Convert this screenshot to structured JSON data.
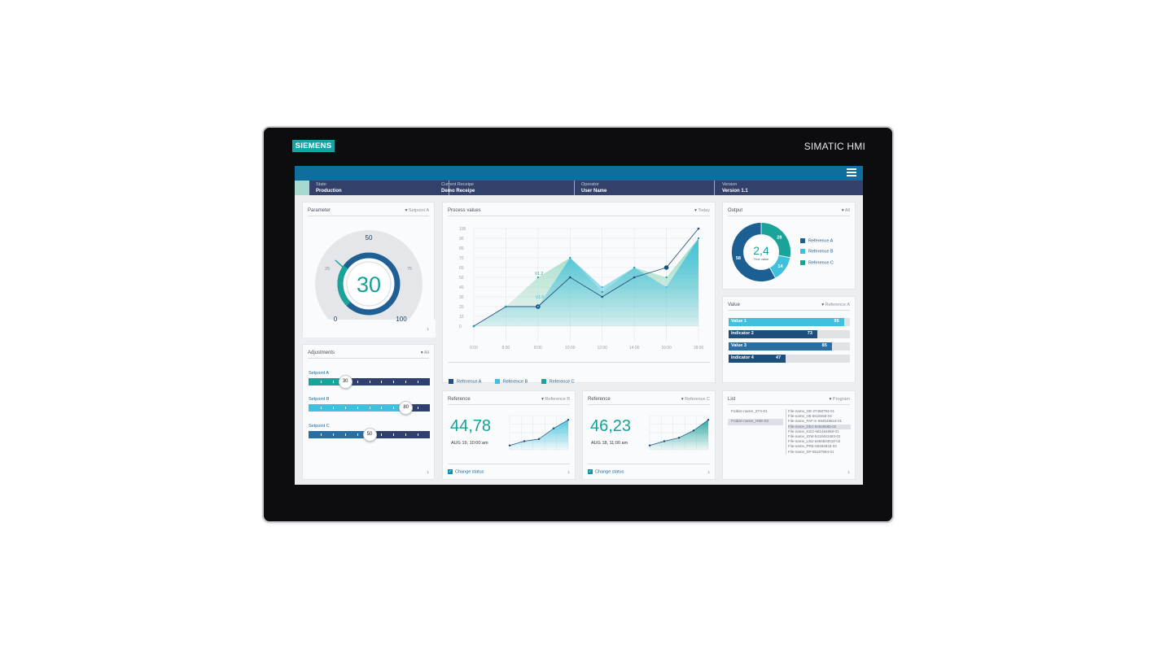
{
  "device": {
    "brand": "SIEMENS",
    "product": "SIMATIC HMI"
  },
  "status": [
    {
      "label": "State",
      "value": "Production"
    },
    {
      "label": "Current Receipe",
      "value": "Demo Receipe"
    },
    {
      "label": "Operator",
      "value": "User Name"
    },
    {
      "label": "Version",
      "value": "Version 1.1"
    }
  ],
  "parameter": {
    "title": "Parameter",
    "filter": "Setpoint A",
    "value": "30",
    "gauge_min": "0",
    "gauge_max": "100",
    "gauge_mid": "50",
    "gauge_q1": "25",
    "gauge_q3": "75",
    "fraction": 0.3
  },
  "adjustments": {
    "title": "Adjustments",
    "filter": "All",
    "sliders": [
      {
        "label": "Setpoint A",
        "value": "30",
        "level": 0.3,
        "color": "#1aa399"
      },
      {
        "label": "Setpoint B",
        "value": "80",
        "level": 0.8,
        "color": "#3fc0dc"
      },
      {
        "label": "Setpoint C",
        "value": "50",
        "level": 0.5,
        "color": "#2a6fa4"
      }
    ]
  },
  "process": {
    "title": "Process values",
    "filter": "Today",
    "legend": [
      {
        "name": "Reference A",
        "color": "#1c4f7c"
      },
      {
        "name": "Reference B",
        "color": "#3fc0dc"
      },
      {
        "name": "Reference C",
        "color": "#1aa399"
      }
    ]
  },
  "chart_data": {
    "type": "line",
    "x": [
      "6:00",
      "8:00",
      "8:00",
      "10:00",
      "12:00",
      "14:00",
      "16:00",
      "18:00"
    ],
    "ylim": [
      0,
      100
    ],
    "yticks": [
      "0",
      "10",
      "20",
      "30",
      "40",
      "50",
      "60",
      "70",
      "80",
      "90",
      "100"
    ],
    "series": [
      {
        "name": "Reference A",
        "values": [
          0,
          20,
          20,
          50,
          30,
          50,
          60,
          100
        ]
      },
      {
        "name": "Reference B",
        "values": [
          0,
          20,
          20,
          70,
          40,
          60,
          40,
          90
        ]
      },
      {
        "name": "Reference C",
        "values": [
          0,
          20,
          50,
          70,
          35,
          60,
          50,
          90
        ]
      }
    ],
    "annotations": [
      "V1.2",
      "V1.0"
    ]
  },
  "output": {
    "title": "Output",
    "filter": "All",
    "center_value": "2,4",
    "center_label": "True value",
    "slices": [
      {
        "name": "Reference A",
        "value": 58,
        "color": "#1c5f92"
      },
      {
        "name": "Reference B",
        "value": 14,
        "color": "#3fc0dc"
      },
      {
        "name": "Reference C",
        "value": 28,
        "color": "#1aa399"
      }
    ]
  },
  "values_card": {
    "title": "Value",
    "filter": "Reference A",
    "bars": [
      {
        "name": "Value 1",
        "value": "95",
        "level": 0.95,
        "color": "#3fc0dc"
      },
      {
        "name": "Indicator 2",
        "value": "73",
        "level": 0.73,
        "color": "#1c4f7c"
      },
      {
        "name": "Value 3",
        "value": "85",
        "level": 0.85,
        "color": "#2a6fa4"
      },
      {
        "name": "Indicator 4",
        "value": "47",
        "level": 0.47,
        "color": "#1c4f7c"
      }
    ]
  },
  "reference_b": {
    "title": "Reference",
    "filter": "Reference B",
    "value": "44,78",
    "date": "AUG 19, 10:00 am",
    "check": "Change status",
    "trend": [
      10,
      20,
      25,
      50,
      70
    ],
    "color": "#3fc0dc"
  },
  "reference_c": {
    "title": "Reference",
    "filter": "Reference C",
    "value": "46,23",
    "date": "AUG 18, 11:00 am",
    "check": "Change status",
    "trend": [
      10,
      20,
      28,
      45,
      70
    ],
    "color": "#1aa399"
  },
  "list": {
    "title": "List",
    "filter": "Program",
    "folders": [
      "Folder-name_274-01",
      "Folder-name_H6E-02"
    ],
    "files": [
      "File-name_GE-27458793-01",
      "File-name_H5-5618468-04",
      "File-name_PAF-K-694548618-01",
      "File-name_DDJ-94846585-02",
      "File-name_KSO-651484868-01",
      "File-name_IOW-5418463483-01",
      "File-name_LSU-6484843518-02",
      "File-name_PRE-65484818-03",
      "File-name_SP-65187684-01"
    ]
  }
}
